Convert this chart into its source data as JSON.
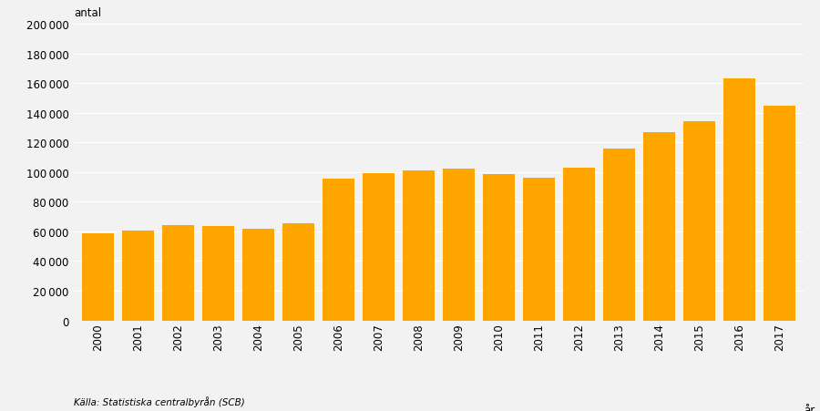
{
  "years": [
    2000,
    2001,
    2002,
    2003,
    2004,
    2005,
    2006,
    2007,
    2008,
    2009,
    2010,
    2011,
    2012,
    2013,
    2014,
    2015,
    2016,
    2017
  ],
  "values": [
    58659,
    60795,
    64087,
    63795,
    62028,
    65229,
    95750,
    99485,
    101171,
    102280,
    98801,
    96467,
    103059,
    115845,
    126966,
    134240,
    163005,
    144489
  ],
  "bar_color": "#FFA500",
  "background_color": "#F2F2F2",
  "plot_bg_color": "#F2F2F2",
  "ylabel": "antal",
  "xlabel": "år",
  "ylim": [
    0,
    200000
  ],
  "yticks": [
    0,
    20000,
    40000,
    60000,
    80000,
    100000,
    120000,
    140000,
    160000,
    180000,
    200000
  ],
  "source_text": "Källa: Statistiska centralbyrån (SCB)",
  "grid_color": "#FFFFFF",
  "bar_edge_color": "none",
  "tick_fontsize": 8.5,
  "label_fontsize": 8.5
}
